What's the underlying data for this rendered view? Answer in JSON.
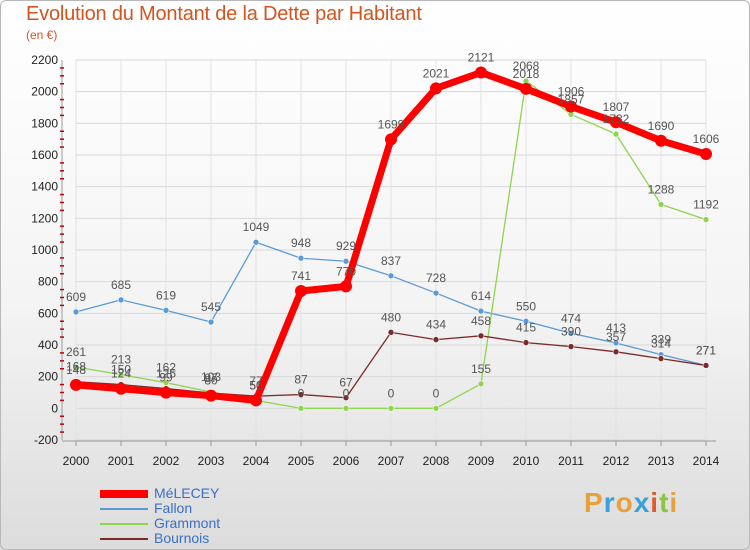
{
  "title": "Evolution du Montant de la Dette par Habitant",
  "subtitle": "(en €)",
  "logo": {
    "letters": [
      "P",
      "r",
      "o",
      "x",
      "i",
      "t",
      "i"
    ],
    "colors": [
      "#e8a13a",
      "#3aa0d8",
      "#e8a13a",
      "#3aa0d8",
      "#e05a2b",
      "#8cc63f",
      "#e8a13a"
    ]
  },
  "chart_data": {
    "type": "line",
    "title": "Evolution du Montant de la Dette par Habitant",
    "ylabel": "(en €)",
    "ylim": [
      -200,
      2200
    ],
    "yticks": [
      -200,
      0,
      200,
      400,
      600,
      800,
      1000,
      1200,
      1400,
      1600,
      1800,
      2000,
      2200
    ],
    "x": [
      2000,
      2001,
      2002,
      2003,
      2004,
      2005,
      2006,
      2007,
      2008,
      2009,
      2010,
      2011,
      2012,
      2013,
      2014
    ],
    "series": [
      {
        "name": "MéLECEY",
        "color": "#ff0000",
        "width": 7,
        "marker": 6,
        "labelColor": "#555555",
        "values": [
          148,
          124,
          99,
          80,
          50,
          741,
          770,
          1699,
          2021,
          2121,
          2018,
          1906,
          1807,
          1690,
          1606
        ]
      },
      {
        "name": "Fallon",
        "color": "#5b9bd5",
        "width": 1.3,
        "marker": 3,
        "labelColor": "#555555",
        "values": [
          609,
          685,
          619,
          545,
          1049,
          948,
          929,
          837,
          728,
          614,
          550,
          474,
          413,
          339,
          271
        ]
      },
      {
        "name": "Grammont",
        "color": "#8fd44f",
        "width": 1.3,
        "marker": 3,
        "labelColor": "#555555",
        "values": [
          261,
          213,
          162,
          103,
          50,
          0,
          0,
          0,
          0,
          155,
          2068,
          1857,
          1732,
          1288,
          1192
        ]
      },
      {
        "name": "Bournois",
        "color": "#7b2a2a",
        "width": 1.3,
        "marker": 3,
        "labelColor": "#555555",
        "values": [
          168,
          150,
          125,
          97,
          77,
          87,
          67,
          480,
          434,
          458,
          415,
          390,
          357,
          314,
          271
        ]
      }
    ]
  }
}
